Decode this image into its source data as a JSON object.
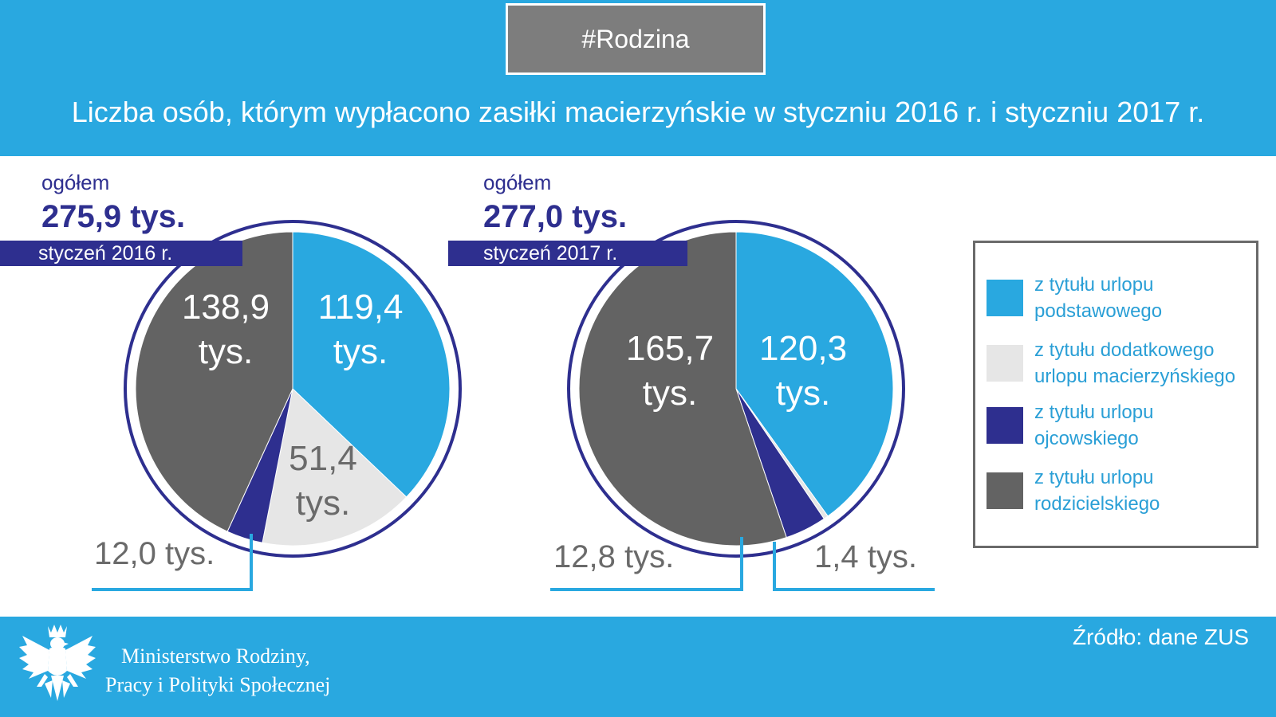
{
  "header": {
    "tag": "#Rodzina",
    "title": "Liczba osób, którym wypłacono zasiłki macierzyńskie w styczniu 2016 r. i styczniu 2017 r."
  },
  "colors": {
    "podstawowy": "#29a8e0",
    "dodatkowy": "#e6e6e6",
    "ojcowski": "#2e2f8f",
    "rodzicielski": "#636363",
    "leader": "#29a8e0"
  },
  "chart_data": [
    {
      "type": "pie",
      "ogolem_label": "ogółem",
      "total": "275,9 tys.",
      "month": "styczeń 2016 r.",
      "slices": [
        {
          "category": "z tytułu urlopu podstawowego",
          "value": 119.4,
          "label": "119,4",
          "unit": "tys."
        },
        {
          "category": "z tytułu dodatkowego urlopu macierzyńskiego",
          "value": 51.4,
          "label": "51,4",
          "unit": "tys."
        },
        {
          "category": "z tytułu urlopu ojcowskiego",
          "value": 12.0,
          "label": "12,0 tys."
        },
        {
          "category": "z tytułu urlopu rodzicielskiego",
          "value": 138.9,
          "label": "138,9",
          "unit": "tys."
        }
      ]
    },
    {
      "type": "pie",
      "ogolem_label": "ogółem",
      "total": "277,0 tys.",
      "month": "styczeń 2017 r.",
      "slices": [
        {
          "category": "z tytułu urlopu podstawowego",
          "value": 120.3,
          "label": "120,3",
          "unit": "tys."
        },
        {
          "category": "z tytułu dodatkowego urlopu macierzyńskiego",
          "value": 1.4,
          "label": "1,4 tys."
        },
        {
          "category": "z tytułu urlopu ojcowskiego",
          "value": 12.8,
          "label": "12,8 tys."
        },
        {
          "category": "z tytułu urlopu rodzicielskiego",
          "value": 165.7,
          "label": "165,7",
          "unit": "tys."
        }
      ]
    }
  ],
  "legend": {
    "items": [
      {
        "label": "z tytułu urlopu podstawowego"
      },
      {
        "label": "z tytułu dodatkowego urlopu macierzyńskiego"
      },
      {
        "label": "z tytułu urlopu ojcowskiego"
      },
      {
        "label": "z tytułu urlopu rodzicielskiego"
      }
    ]
  },
  "footer": {
    "ministry_line1": "Ministerstwo Rodziny,",
    "ministry_line2": "Pracy i Polityki Społecznej",
    "source": "Źródło: dane ZUS",
    "emblem_icon": "polish-eagle-icon"
  }
}
